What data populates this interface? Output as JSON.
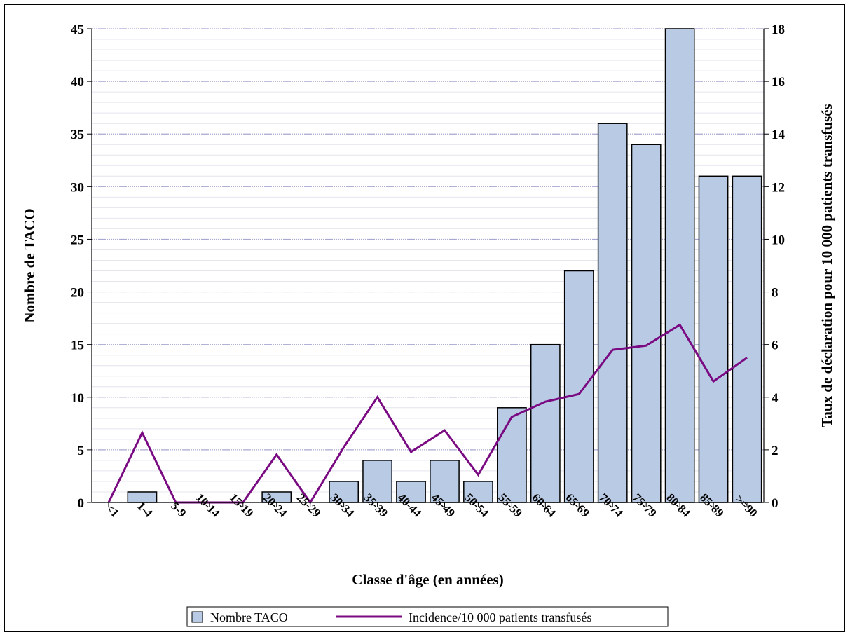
{
  "chart_data": {
    "type": "bar",
    "categories": [
      "<1",
      "1-4",
      "5-9",
      "10-14",
      "15-19",
      "20-24",
      "25-29",
      "30-34",
      "35-39",
      "40-44",
      "45-49",
      "50-54",
      "55-59",
      "60-64",
      "65-69",
      "70-74",
      "75-79",
      "80-84",
      "85-89",
      ">=90"
    ],
    "series": [
      {
        "name": "Nombre TACO",
        "type": "bar",
        "axis": "left",
        "values": [
          0,
          1,
          0,
          0,
          0,
          1,
          0,
          2,
          4,
          2,
          4,
          2,
          9,
          15,
          22,
          36,
          34,
          45,
          31,
          31
        ]
      },
      {
        "name": "Incidence/10 000 patients transfusés",
        "type": "line",
        "axis": "right",
        "values": [
          0,
          2.65,
          0,
          0,
          0,
          1.82,
          0,
          2.1,
          4.0,
          1.92,
          2.74,
          1.05,
          3.25,
          3.83,
          4.12,
          5.8,
          5.96,
          6.75,
          4.6,
          5.5
        ]
      }
    ],
    "xlabel": "Classe d'âge (en années)",
    "ylabel": "Nombre de TACO",
    "y2label": "Taux de déclaration pour 10 000 patients transfusés",
    "ylim": [
      0,
      45
    ],
    "y2lim": [
      0,
      18
    ],
    "yticks": [
      0,
      5,
      10,
      15,
      20,
      25,
      30,
      35,
      40,
      45
    ],
    "y2ticks": [
      0,
      2,
      4,
      6,
      8,
      10,
      12,
      14,
      16,
      18
    ],
    "grid": true,
    "legend_position": "bottom",
    "colors": {
      "bar_fill": "#b9cbe4",
      "bar_stroke": "#000000",
      "line": "#7a0a82",
      "grid": "#a8a8d0"
    }
  }
}
